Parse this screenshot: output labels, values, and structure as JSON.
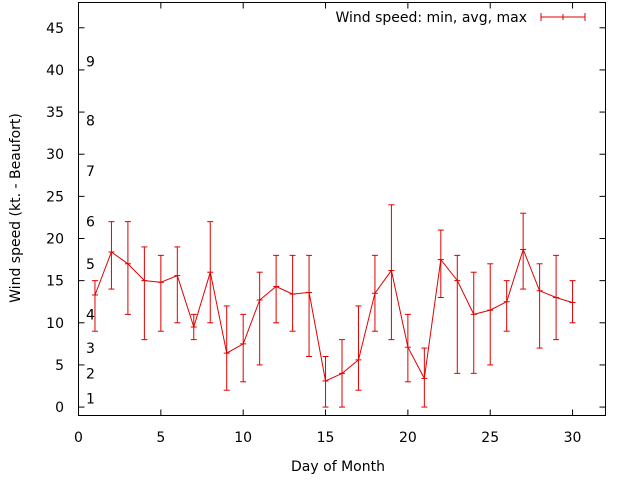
{
  "chart_data": {
    "type": "line",
    "xlabel": "Day of Month",
    "ylabel": "Wind speed (kt. - Beaufort)",
    "xlim": [
      0,
      32
    ],
    "ylim": [
      -1,
      48
    ],
    "xticks": [
      0,
      5,
      10,
      15,
      20,
      25,
      30
    ],
    "yticks": [
      0,
      5,
      10,
      15,
      20,
      25,
      30,
      35,
      40,
      45
    ],
    "grid": false,
    "legend_position": "top-right",
    "beaufort_labels": [
      {
        "label": "1",
        "value": 1
      },
      {
        "label": "2",
        "value": 4
      },
      {
        "label": "3",
        "value": 7
      },
      {
        "label": "4",
        "value": 11
      },
      {
        "label": "5",
        "value": 17
      },
      {
        "label": "6",
        "value": 22
      },
      {
        "label": "7",
        "value": 28
      },
      {
        "label": "8",
        "value": 34
      },
      {
        "label": "9",
        "value": 41
      }
    ],
    "series": [
      {
        "name": "Wind speed: min, avg, max",
        "color": "#e00000",
        "x": [
          1,
          2,
          3,
          4,
          5,
          6,
          7,
          8,
          9,
          10,
          11,
          12,
          13,
          14,
          15,
          16,
          17,
          18,
          19,
          20,
          21,
          22,
          23,
          24,
          25,
          26,
          27,
          28,
          29,
          30
        ],
        "min": [
          9,
          14,
          11,
          8,
          9,
          10,
          8,
          10,
          2,
          3,
          5,
          10,
          9,
          6,
          0,
          0,
          2,
          9,
          8,
          3,
          0,
          13,
          4,
          4,
          5,
          9,
          14,
          7,
          8,
          10
        ],
        "avg": [
          13.3,
          18.4,
          17,
          15,
          14.8,
          15.6,
          9.5,
          16,
          6.4,
          7.5,
          12.7,
          14.3,
          13.4,
          13.6,
          3.1,
          4,
          5.6,
          13.5,
          16.2,
          7.1,
          3.4,
          17.5,
          15,
          11,
          11.5,
          12.5,
          18.7,
          13.8,
          13,
          12.4
        ],
        "max": [
          15,
          22,
          22,
          19,
          18,
          19,
          11,
          22,
          12,
          11,
          16,
          18,
          18,
          18,
          6,
          8,
          12,
          18,
          24,
          11,
          7,
          21,
          18,
          16,
          17,
          15,
          23,
          17,
          18,
          15
        ]
      }
    ]
  }
}
